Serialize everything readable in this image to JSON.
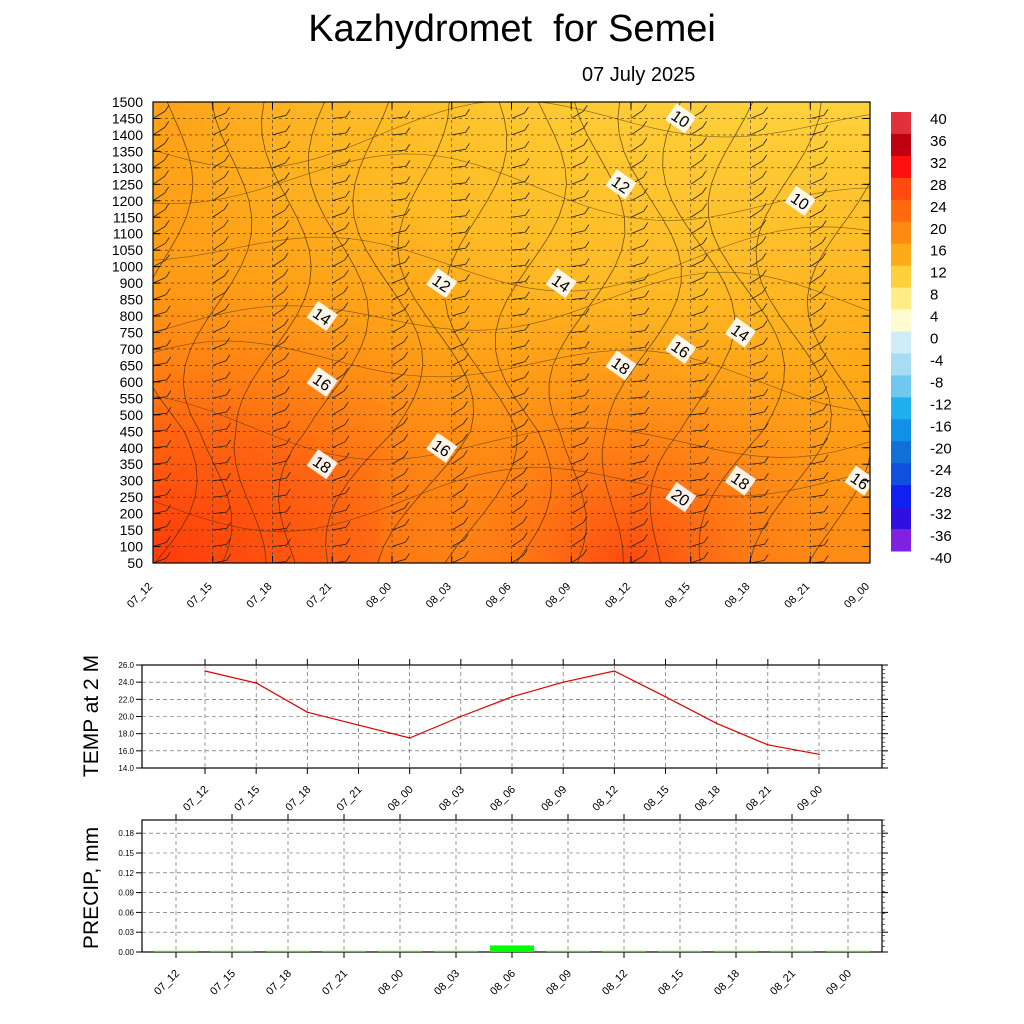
{
  "title": "Kazhydromet  for Semei",
  "subtitle": "07 July 2025",
  "colors": {
    "warm_low": "#ff4a10",
    "warm_mid": "#ff9a14",
    "warm_high": "#ffd84a",
    "temp_line": "#e00000",
    "precip_bar": "#00ff00"
  },
  "chart_data": [
    {
      "type": "heatmap",
      "title": "Kazhydromet  for Semei",
      "x_labels": [
        "07_12",
        "07_15",
        "07_18",
        "07_21",
        "08_00",
        "08_03",
        "08_06",
        "08_09",
        "08_12",
        "08_15",
        "08_18",
        "08_21",
        "09_00"
      ],
      "y_labels": [
        "50",
        "100",
        "150",
        "200",
        "250",
        "300",
        "350",
        "400",
        "450",
        "500",
        "550",
        "600",
        "650",
        "700",
        "750",
        "800",
        "850",
        "900",
        "1000",
        "1050",
        "1100",
        "1150",
        "1200",
        "1250",
        "1300",
        "1350",
        "1400",
        "1450",
        "1500"
      ],
      "colorbar": {
        "labels": [
          "40",
          "36",
          "32",
          "28",
          "24",
          "20",
          "16",
          "12",
          "8",
          "4",
          "0",
          "-4",
          "-8",
          "-12",
          "-16",
          "-20",
          "-24",
          "-28",
          "-32",
          "-36",
          "-40"
        ]
      },
      "contour_labels": [
        {
          "text": "10",
          "x": "08_15",
          "y": "1450"
        },
        {
          "text": "12",
          "x": "08_12",
          "y": "1250"
        },
        {
          "text": "10",
          "x": "08_21",
          "y": "1200"
        },
        {
          "text": "12",
          "x": "08_03",
          "y": "900"
        },
        {
          "text": "14",
          "x": "08_09",
          "y": "900"
        },
        {
          "text": "14",
          "x": "07_21",
          "y": "800"
        },
        {
          "text": "14",
          "x": "08_18",
          "y": "750"
        },
        {
          "text": "16",
          "x": "08_15",
          "y": "700"
        },
        {
          "text": "18",
          "x": "08_12",
          "y": "650"
        },
        {
          "text": "16",
          "x": "07_21",
          "y": "600"
        },
        {
          "text": "16",
          "x": "08_03",
          "y": "400"
        },
        {
          "text": "18",
          "x": "07_21",
          "y": "350"
        },
        {
          "text": "18",
          "x": "08_18",
          "y": "300"
        },
        {
          "text": "16",
          "x": "09_00",
          "y": "300"
        },
        {
          "text": "20",
          "x": "08_15",
          "y": "250"
        }
      ]
    },
    {
      "type": "line",
      "ylabel": "TEMP at 2 M",
      "x": [
        "07_12",
        "07_15",
        "07_18",
        "07_21",
        "08_00",
        "08_03",
        "08_06",
        "08_09",
        "08_12",
        "08_15",
        "08_18",
        "08_21",
        "09_00"
      ],
      "y_ticks": [
        "26.0",
        "24.0",
        "22.0",
        "20.0",
        "18.0",
        "16.0",
        "14.0"
      ],
      "ylim": [
        14,
        26
      ],
      "values": [
        25.3,
        23.9,
        20.5,
        19.0,
        17.5,
        20.0,
        22.3,
        24.0,
        25.3,
        22.3,
        19.2,
        16.7,
        15.6
      ]
    },
    {
      "type": "bar",
      "ylabel": "PRECIP, mm",
      "x": [
        "07_12",
        "07_15",
        "07_18",
        "07_21",
        "08_00",
        "08_03",
        "08_06",
        "08_09",
        "08_12",
        "08_15",
        "08_18",
        "08_21",
        "09_00"
      ],
      "y_ticks": [
        "0.18",
        "0.15",
        "0.12",
        "0.09",
        "0.06",
        "0.03",
        "0.00"
      ],
      "ylim": [
        0,
        0.2
      ],
      "values": [
        0,
        0,
        0,
        0,
        0,
        0,
        0.01,
        0,
        0,
        0,
        0,
        0,
        0
      ]
    }
  ]
}
